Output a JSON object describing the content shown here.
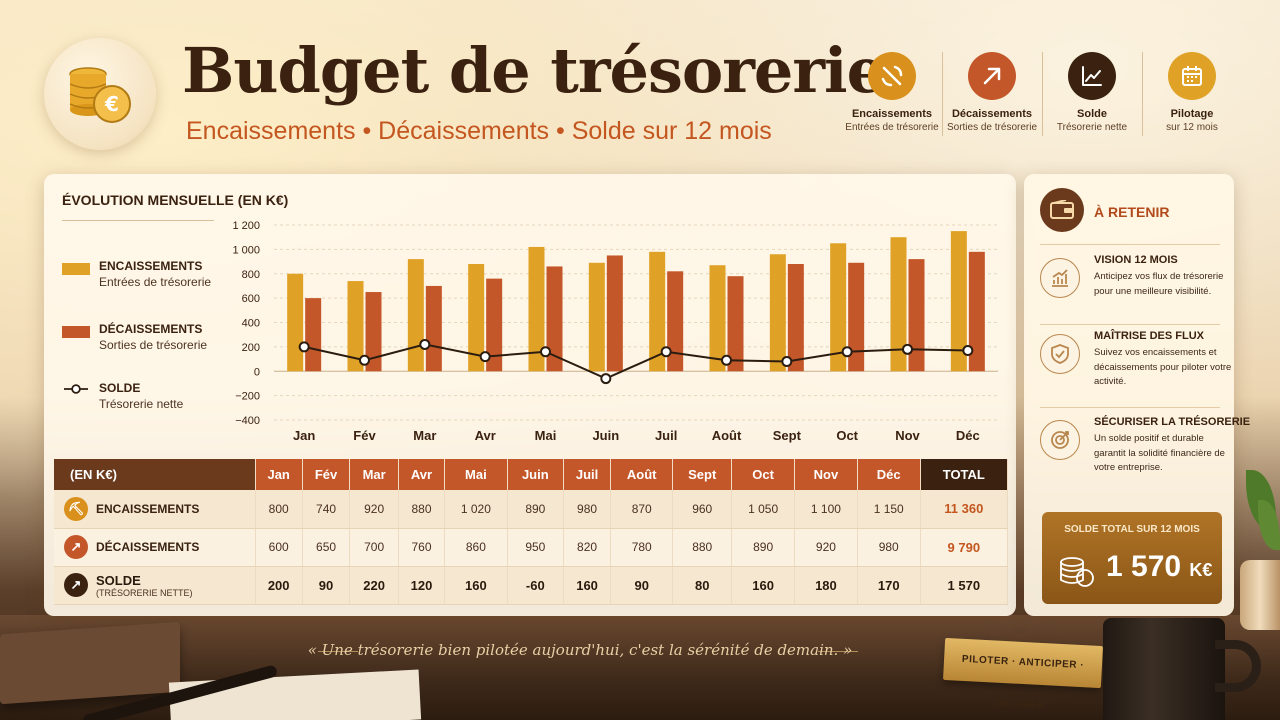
{
  "header": {
    "title": "Budget de trésorerie",
    "subtitle": "Encaissements  •  Décaissements  •  Solde sur 12 mois",
    "items": [
      {
        "title": "Encaissements",
        "sub": "Entrées de trésorerie",
        "icon": "pickaxe-icon",
        "color": "#d9901c"
      },
      {
        "title": "Décaissements",
        "sub": "Sorties de trésorerie",
        "icon": "arrow-up-right-icon",
        "color": "#c4572a"
      },
      {
        "title": "Solde",
        "sub": "Trésorerie nette",
        "icon": "line-chart-icon",
        "color": "#3b2210"
      },
      {
        "title": "Pilotage",
        "sub": "sur 12 mois",
        "icon": "calendar-icon",
        "color": "#e0a226"
      }
    ]
  },
  "panel": {
    "title": "ÉVOLUTION MENSUELLE (EN K€)",
    "legend": [
      {
        "title": "ENCAISSEMENTS",
        "sub": "Entrées de trésorerie"
      },
      {
        "title": "DÉCAISSEMENTS",
        "sub": "Sorties de trésorerie"
      },
      {
        "title": "SOLDE",
        "sub": "Trésorerie nette"
      }
    ]
  },
  "chart_data": {
    "type": "bar",
    "title": "ÉVOLUTION MENSUELLE (EN K€)",
    "categories": [
      "Jan",
      "Fév",
      "Mar",
      "Avr",
      "Mai",
      "Juin",
      "Juil",
      "Août",
      "Sept",
      "Oct",
      "Nov",
      "Déc"
    ],
    "series": [
      {
        "name": "ENCAISSEMENTS",
        "type": "bar",
        "color": "#e0a226",
        "values": [
          800,
          740,
          920,
          880,
          1020,
          890,
          980,
          870,
          960,
          1050,
          1100,
          1150
        ]
      },
      {
        "name": "DÉCAISSEMENTS",
        "type": "bar",
        "color": "#c4572a",
        "values": [
          600,
          650,
          700,
          760,
          860,
          950,
          820,
          780,
          880,
          890,
          920,
          980
        ]
      },
      {
        "name": "SOLDE",
        "type": "line",
        "color": "#2b1c10",
        "values": [
          200,
          90,
          220,
          120,
          160,
          -60,
          160,
          90,
          80,
          160,
          180,
          170
        ]
      }
    ],
    "yticks": [
      "1 200",
      "1 000",
      "800",
      "600",
      "400",
      "200",
      "0",
      "−200",
      "−400"
    ],
    "ylim": [
      -400,
      1200
    ],
    "grid": true,
    "legend": "left"
  },
  "table": {
    "corner": "(EN K€)",
    "months": [
      "Jan",
      "Fév",
      "Mar",
      "Avr",
      "Mai",
      "Juin",
      "Juil",
      "Août",
      "Sept",
      "Oct",
      "Nov",
      "Déc"
    ],
    "total_label": "TOTAL",
    "rows": [
      {
        "label": "ENCAISSEMENTS",
        "sub": "",
        "icon": "pickaxe-icon",
        "values": [
          "800",
          "740",
          "920",
          "880",
          "1 020",
          "890",
          "980",
          "870",
          "960",
          "1 050",
          "1 100",
          "1 150"
        ],
        "total": "11 360",
        "total_color": "#c4561f"
      },
      {
        "label": "DÉCAISSEMENTS",
        "sub": "",
        "icon": "arrow-up-right-icon",
        "values": [
          "600",
          "650",
          "700",
          "760",
          "860",
          "950",
          "820",
          "780",
          "880",
          "890",
          "920",
          "980"
        ],
        "total": "9 790",
        "total_color": "#c4561f"
      },
      {
        "label": "SOLDE",
        "sub": "(TRÉSORERIE NETTE)",
        "icon": "line-chart-icon",
        "values": [
          "200",
          "90",
          "220",
          "120",
          "160",
          "-60",
          "160",
          "90",
          "80",
          "160",
          "180",
          "170"
        ],
        "total": "1 570",
        "total_color": "#2a1a0e"
      }
    ]
  },
  "aside": {
    "title": "À RETENIR",
    "sections": [
      {
        "title": "VISION 12 MOIS",
        "text": "Anticipez vos flux de trésorerie pour une meilleure visibilité.",
        "icon": "growth-chart-icon"
      },
      {
        "title": "MAÎTRISE DES FLUX",
        "text": "Suivez vos encaissements et décaissements pour piloter votre activité.",
        "icon": "shield-check-icon"
      },
      {
        "title": "SÉCURISER LA TRÉSORERIE",
        "text": "Un solde positif et durable garantit la solidité financière de votre entreprise.",
        "icon": "target-icon"
      }
    ],
    "total": {
      "label": "SOLDE TOTAL SUR 12 MOIS",
      "value": "1 570",
      "unit": "K€"
    }
  },
  "quote": "«  Une trésorerie bien pilotée aujourd'hui, c'est la sérénité de demain.  »",
  "plaque": "PILOTER · ANTICIPER · DÉCIDER"
}
